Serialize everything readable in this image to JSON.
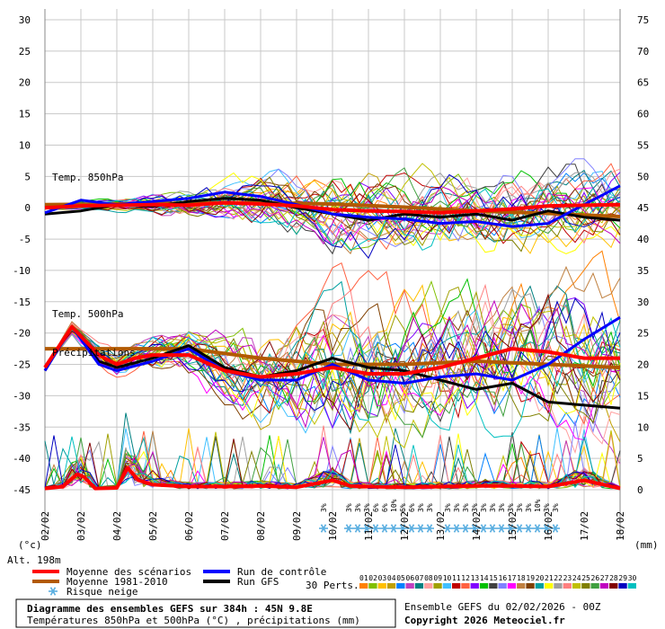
{
  "chart_data": {
    "type": "line",
    "left_axis_ticks": [
      30,
      25,
      20,
      15,
      10,
      5,
      0,
      -5,
      -10,
      -15,
      -20,
      -25,
      -30,
      -35,
      -40,
      -45
    ],
    "right_axis_ticks": [
      75,
      70,
      65,
      60,
      55,
      50,
      45,
      40,
      35,
      30,
      25,
      20,
      15,
      10,
      5,
      0
    ],
    "ylim_temp": [
      -45,
      30
    ],
    "ylim_precip": [
      0,
      75
    ],
    "left_unit": "(°c)",
    "right_unit": "(mm)",
    "x_labels": [
      "02/02",
      "03/02",
      "04/02",
      "05/02",
      "06/02",
      "07/02",
      "08/02",
      "09/02",
      "10/02",
      "11/02",
      "12/02",
      "13/02",
      "14/02",
      "15/02",
      "16/02",
      "17/02",
      "18/02"
    ],
    "panel_labels": {
      "t850": "Temp. 850hPa",
      "t500": "Temp. 500hPa",
      "precip": "Précipitations"
    },
    "series": [
      {
        "name": "Moyenne des scénarios",
        "color": "#ff0000"
      },
      {
        "name": "Moyenne 1981-2010",
        "color": "#b25a00"
      },
      {
        "name": "Run de contrôle",
        "color": "#0000ff"
      },
      {
        "name": "Run GFS",
        "color": "#000000"
      }
    ],
    "mean_t850": [
      [
        0,
        0.0
      ],
      [
        1,
        0.3
      ],
      [
        2,
        0.4
      ],
      [
        3,
        0.5
      ],
      [
        4,
        0.4
      ],
      [
        5,
        0.8
      ],
      [
        6,
        0.6
      ],
      [
        7,
        0.3
      ],
      [
        8,
        -0.3
      ],
      [
        9,
        -0.5
      ],
      [
        10,
        -0.6
      ],
      [
        11,
        -0.8
      ],
      [
        12,
        -0.5
      ],
      [
        13,
        -0.2
      ],
      [
        14,
        0.3
      ],
      [
        15,
        0.4
      ],
      [
        16,
        0.5
      ]
    ],
    "clim_t850": [
      [
        0,
        0.5
      ],
      [
        2,
        0.6
      ],
      [
        4,
        0.7
      ],
      [
        6,
        0.8
      ],
      [
        8,
        0.6
      ],
      [
        10,
        0.1
      ],
      [
        12,
        -0.5
      ],
      [
        14,
        -0.9
      ],
      [
        16,
        -1.4
      ]
    ],
    "ctrl_t850": [
      [
        0,
        -0.8
      ],
      [
        1,
        1.2
      ],
      [
        2,
        0.5
      ],
      [
        3,
        1.0
      ],
      [
        4,
        1.5
      ],
      [
        5,
        2.5
      ],
      [
        6,
        1.8
      ],
      [
        7,
        0.5
      ],
      [
        8,
        -1.0
      ],
      [
        9,
        -1.5
      ],
      [
        10,
        -1.8
      ],
      [
        11,
        -2.5
      ],
      [
        12,
        -2.2
      ],
      [
        13,
        -3.0
      ],
      [
        14,
        -2.5
      ],
      [
        15,
        0.5
      ],
      [
        16,
        3.5
      ]
    ],
    "gfs_t850": [
      [
        0,
        -1.0
      ],
      [
        1,
        -0.5
      ],
      [
        2,
        0.5
      ],
      [
        3,
        0.2
      ],
      [
        4,
        1.0
      ],
      [
        5,
        1.5
      ],
      [
        6,
        1.2
      ],
      [
        7,
        0.0
      ],
      [
        8,
        -1.0
      ],
      [
        9,
        -2.0
      ],
      [
        10,
        -1.0
      ],
      [
        11,
        -1.5
      ],
      [
        12,
        -1.0
      ],
      [
        13,
        -2.0
      ],
      [
        14,
        -0.5
      ],
      [
        15,
        -1.5
      ],
      [
        16,
        -2.0
      ]
    ],
    "mean_t500": [
      [
        0,
        -25.5
      ],
      [
        0.75,
        -19.0
      ],
      [
        1.5,
        -23.5
      ],
      [
        2,
        -25.0
      ],
      [
        2.5,
        -24.0
      ],
      [
        3,
        -23.5
      ],
      [
        4,
        -23.5
      ],
      [
        5,
        -26.0
      ],
      [
        6,
        -27.0
      ],
      [
        7,
        -26.5
      ],
      [
        8,
        -25.5
      ],
      [
        9,
        -26.5
      ],
      [
        10,
        -26.5
      ],
      [
        11,
        -25.5
      ],
      [
        12,
        -24.0
      ],
      [
        13,
        -22.5
      ],
      [
        14,
        -23.0
      ],
      [
        15,
        -24.0
      ],
      [
        16,
        -24.0
      ]
    ],
    "clim_t500": [
      [
        0,
        -22.5
      ],
      [
        2,
        -22.5
      ],
      [
        4,
        -22.5
      ],
      [
        6,
        -24.0
      ],
      [
        8,
        -25.0
      ],
      [
        10,
        -25.0
      ],
      [
        12,
        -24.5
      ],
      [
        14,
        -25.0
      ],
      [
        16,
        -25.5
      ]
    ],
    "ctrl_t500": [
      [
        0,
        -26.0
      ],
      [
        0.75,
        -19.0
      ],
      [
        1.5,
        -25.0
      ],
      [
        2,
        -26.0
      ],
      [
        3,
        -24.5
      ],
      [
        4,
        -22.5
      ],
      [
        5,
        -26.0
      ],
      [
        6,
        -27.5
      ],
      [
        7,
        -27.5
      ],
      [
        8,
        -25.0
      ],
      [
        9,
        -27.5
      ],
      [
        10,
        -28.0
      ],
      [
        11,
        -27.0
      ],
      [
        12,
        -26.5
      ],
      [
        13,
        -27.5
      ],
      [
        14,
        -25.0
      ],
      [
        15,
        -21.0
      ],
      [
        16,
        -17.5
      ]
    ],
    "gfs_t500": [
      [
        0,
        -26.0
      ],
      [
        0.75,
        -19.0
      ],
      [
        1.5,
        -24.5
      ],
      [
        2,
        -25.5
      ],
      [
        3,
        -24.0
      ],
      [
        4,
        -22.0
      ],
      [
        5,
        -25.5
      ],
      [
        6,
        -27.0
      ],
      [
        7,
        -26.0
      ],
      [
        8,
        -24.0
      ],
      [
        9,
        -25.5
      ],
      [
        10,
        -26.0
      ],
      [
        11,
        -27.5
      ],
      [
        12,
        -29.0
      ],
      [
        13,
        -28.0
      ],
      [
        14,
        -31.0
      ],
      [
        15,
        -31.5
      ],
      [
        16,
        -32.0
      ]
    ],
    "mean_precip": [
      [
        0,
        0.2
      ],
      [
        0.5,
        0.5
      ],
      [
        0.9,
        2.5
      ],
      [
        1.1,
        2.0
      ],
      [
        1.4,
        0.2
      ],
      [
        2,
        0.3
      ],
      [
        2.3,
        3.5
      ],
      [
        2.6,
        1.5
      ],
      [
        3,
        0.8
      ],
      [
        4,
        0.5
      ],
      [
        5,
        0.5
      ],
      [
        6,
        0.6
      ],
      [
        7,
        0.4
      ],
      [
        8,
        1.5
      ],
      [
        8.5,
        0.6
      ],
      [
        9,
        0.5
      ],
      [
        10,
        0.4
      ],
      [
        11,
        0.5
      ],
      [
        12,
        0.6
      ],
      [
        13,
        0.6
      ],
      [
        14,
        0.5
      ],
      [
        15,
        1.5
      ],
      [
        16,
        0.2
      ]
    ],
    "snow_markers": [
      {
        "pos": 7.75,
        "pct": "3%"
      },
      {
        "pos": 8.45,
        "pct": "3%"
      },
      {
        "pos": 8.7,
        "pct": "3%"
      },
      {
        "pos": 8.95,
        "pct": "3%"
      },
      {
        "pos": 9.2,
        "pct": "6%"
      },
      {
        "pos": 9.45,
        "pct": "6%"
      },
      {
        "pos": 9.7,
        "pct": "10%"
      },
      {
        "pos": 9.95,
        "pct": "6%"
      },
      {
        "pos": 10.2,
        "pct": "6%"
      },
      {
        "pos": 10.45,
        "pct": "3%"
      },
      {
        "pos": 10.7,
        "pct": "3%"
      },
      {
        "pos": 11.2,
        "pct": "3%"
      },
      {
        "pos": 11.45,
        "pct": "3%"
      },
      {
        "pos": 11.7,
        "pct": "3%"
      },
      {
        "pos": 11.95,
        "pct": "3%"
      },
      {
        "pos": 12.2,
        "pct": "3%"
      },
      {
        "pos": 12.45,
        "pct": "3%"
      },
      {
        "pos": 12.7,
        "pct": "3%"
      },
      {
        "pos": 12.95,
        "pct": "3%"
      },
      {
        "pos": 13.2,
        "pct": "3%"
      },
      {
        "pos": 13.45,
        "pct": "3%"
      },
      {
        "pos": 13.7,
        "pct": "10%"
      },
      {
        "pos": 13.95,
        "pct": "3%"
      },
      {
        "pos": 14.2,
        "pct": "3%"
      }
    ]
  },
  "legend": {
    "mean": "Moyenne des scénarios",
    "clim": "Moyenne 1981-2010",
    "control": "Run de contrôle",
    "gfs": "Run GFS",
    "snow": "Risque neige",
    "altitude": "Alt. 198m",
    "perts_label": "30 Perts."
  },
  "perturbations": {
    "ids": [
      "01",
      "02",
      "03",
      "04",
      "05",
      "06",
      "07",
      "08",
      "09",
      "10",
      "11",
      "12",
      "13",
      "14",
      "15",
      "16",
      "17",
      "18",
      "19",
      "20",
      "21",
      "22",
      "23",
      "24",
      "25",
      "26",
      "27",
      "28",
      "29",
      "30"
    ],
    "colors": [
      "#ff8000",
      "#80c000",
      "#ffc000",
      "#c0a000",
      "#0080ff",
      "#c040c0",
      "#008080",
      "#ffa0a0",
      "#a0a000",
      "#40c0ff",
      "#c00000",
      "#ff6040",
      "#8000ff",
      "#00c000",
      "#404040",
      "#8080ff",
      "#ff00ff",
      "#c08040",
      "#804000",
      "#00a0a0",
      "#ffff00",
      "#a0a0a0",
      "#ff8080",
      "#c0c000",
      "#808000",
      "#40a040",
      "#c000c0",
      "#800000",
      "#0000c0",
      "#00c0c0"
    ]
  },
  "footer": {
    "title": "Diagramme des ensembles GEFS sur 384h : 45N 9.8E",
    "subtitle": "Températures 850hPa et 500hPa (°C) , précipitations (mm)",
    "run": "Ensemble GEFS du 02/02/2026 - 00Z",
    "copyright": "Copyright 2026 Meteociel.fr"
  }
}
